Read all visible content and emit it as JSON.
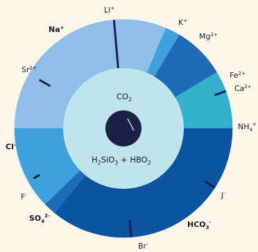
{
  "colors": {
    "background": "#fbf6e8",
    "light_blue": "#8fbfe8",
    "sky_blue": "#3fa0dc",
    "mid_blue": "#1f6bb6",
    "teal": "#35b0cc",
    "dark_blue": "#0b55a0",
    "inner_circle": "#bfe4ec",
    "core": "#1c2147",
    "tick": "#1c2147"
  },
  "center": {
    "top_label": "CO",
    "top_label_sub": "2",
    "bottom_label_part1": "H",
    "bottom_label_sub1": "2",
    "bottom_label_part2": "SiO",
    "bottom_label_sub2": "3",
    "bottom_label_part3": " + HBO",
    "bottom_label_sub3": "2"
  },
  "ions": {
    "li": {
      "base": "Li",
      "sup": "+"
    },
    "k": {
      "base": "K",
      "sup": "+"
    },
    "mg": {
      "base": "Mg",
      "sup": "2+"
    },
    "fe": {
      "base": "Fe",
      "sup": "2+"
    },
    "ca": {
      "base": "Ca",
      "sup": "2+"
    },
    "nh4": {
      "base": "NH",
      "sub": "4",
      "sup": "+"
    },
    "na": {
      "base": "Na",
      "sup": "+"
    },
    "sr": {
      "base": "Sr",
      "sup": "2+"
    },
    "cl": {
      "base": "Cl",
      "sup": "-"
    },
    "f": {
      "base": "F",
      "sup": "-"
    },
    "so4": {
      "base": "SO",
      "sub": "4",
      "sup": "2-"
    },
    "i": {
      "base": "J",
      "sup": "-"
    },
    "hco3": {
      "base": "HCO",
      "sub": "3",
      "sup": "-"
    },
    "br": {
      "base": "Br",
      "sup": "-"
    }
  }
}
